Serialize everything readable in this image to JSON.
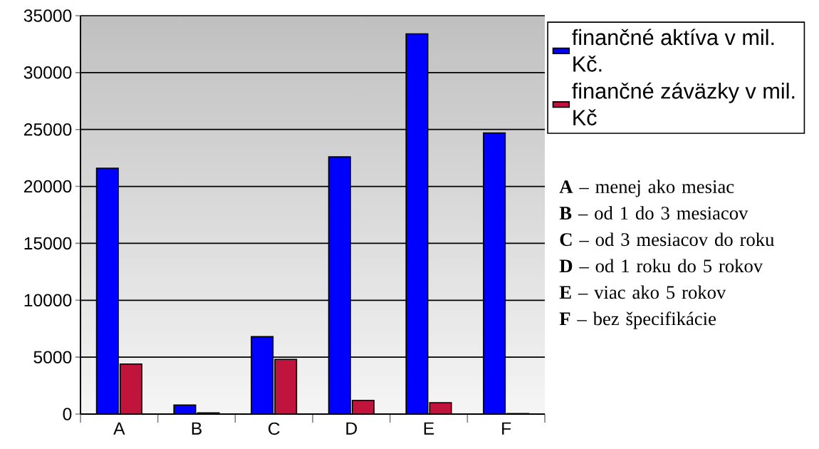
{
  "chart_data": {
    "type": "bar",
    "categories": [
      "A",
      "B",
      "C",
      "D",
      "E",
      "F"
    ],
    "series": [
      {
        "name": "finančné aktíva v mil. Kč.",
        "color": "#0000ff",
        "values": [
          21600,
          800,
          6800,
          22600,
          33400,
          24700
        ]
      },
      {
        "name": "finančné záväzky v mil. Kč",
        "color": "#c0143c",
        "values": [
          4400,
          100,
          4800,
          1200,
          1000,
          50
        ]
      }
    ],
    "ylim": [
      0,
      35000
    ],
    "yticks": [
      0,
      5000,
      10000,
      15000,
      20000,
      25000,
      30000,
      35000
    ],
    "grid": "y",
    "legend": "top right",
    "annotations": [
      "**A** – menej ako mesiac",
      "**B** – od 1 do 3 mesiacov",
      "**C** – od 3 mesiacov do roku",
      "**D** – od 1 roku do 5 rokov",
      "**E** – viac ako 5 rokov",
      "**F** – bez špecifikácie"
    ]
  }
}
